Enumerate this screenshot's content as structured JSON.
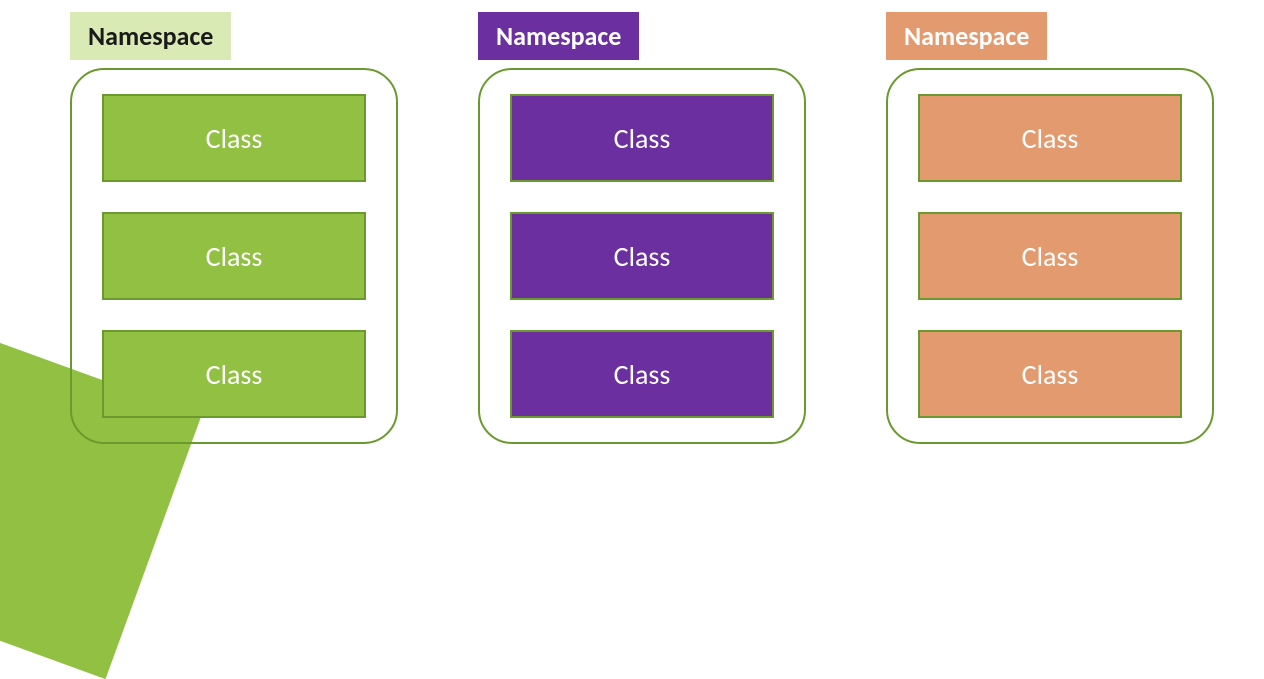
{
  "diagram": {
    "background_color": "#ffffff",
    "font_family": "Trebuchet MS",
    "label_fontsize": 26,
    "box_fontsize": 28,
    "box_border_radius": 34,
    "box_border_width": 2,
    "class_gap": 30,
    "namespaces": [
      {
        "label": "Namespace",
        "label_bg": "#d9eab5",
        "label_text_color": "#1a1a1a",
        "border_color": "#6a9a2d",
        "fill_color": "#91c043",
        "classes": [
          "Class",
          "Class",
          "Class"
        ]
      },
      {
        "label": "Namespace",
        "label_bg": "#6b2fa0",
        "label_text_color": "#ffffff",
        "border_color": "#6a9a2d",
        "fill_color": "#6b2fa0",
        "classes": [
          "Class",
          "Class",
          "Class"
        ]
      },
      {
        "label": "Namespace",
        "label_bg": "#e49a6f",
        "label_text_color": "#ffffff",
        "border_color": "#6a9a2d",
        "fill_color": "#e49a6f",
        "classes": [
          "Class",
          "Class",
          "Class"
        ]
      }
    ],
    "corner_accent_color": "#91c043"
  }
}
